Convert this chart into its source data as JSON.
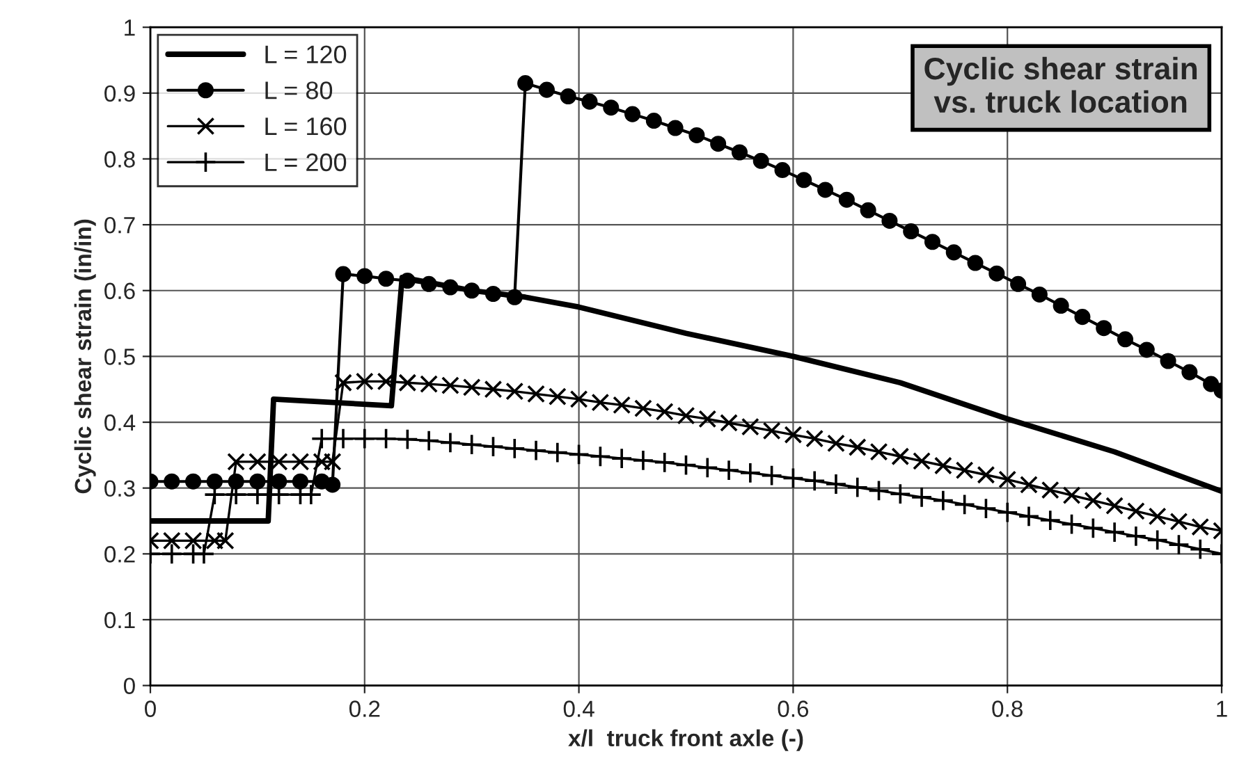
{
  "chart_data": {
    "type": "line",
    "title": "Cyclic shear strain\nvs. truck location",
    "xlabel": "x/l  truck front axle (-)",
    "ylabel": "Cyclic shear strain (in/in)",
    "xlim": [
      0,
      1
    ],
    "xticks": [
      0,
      0.2,
      0.4,
      0.6,
      0.8,
      1
    ],
    "ylim": [
      0,
      1
    ],
    "yticks": [
      0,
      0.1,
      0.2,
      0.3,
      0.4,
      0.5,
      0.6,
      0.7,
      0.8,
      0.9,
      1
    ],
    "grid": true,
    "legend": "top left",
    "series": [
      {
        "name": "L = 120",
        "color": "#000000",
        "marker": "none",
        "x": [
          0,
          0.11,
          0.115,
          0.225,
          0.235,
          0.3,
          0.35,
          0.4,
          0.5,
          0.6,
          0.7,
          0.8,
          0.9,
          1.0
        ],
        "values": [
          0.25,
          0.25,
          0.435,
          0.425,
          0.62,
          0.6,
          0.59,
          0.575,
          0.535,
          0.5,
          0.46,
          0.405,
          0.355,
          0.295
        ]
      },
      {
        "name": "L = 80",
        "color": "#000000",
        "marker": "circle",
        "x": [
          0,
          0.02,
          0.04,
          0.06,
          0.08,
          0.1,
          0.12,
          0.14,
          0.16,
          0.17,
          0.18,
          0.2,
          0.22,
          0.24,
          0.26,
          0.28,
          0.3,
          0.32,
          0.34,
          0.35,
          0.37,
          0.39,
          0.41,
          0.43,
          0.45,
          0.47,
          0.49,
          0.51,
          0.53,
          0.55,
          0.57,
          0.59,
          0.61,
          0.63,
          0.65,
          0.67,
          0.69,
          0.71,
          0.73,
          0.75,
          0.77,
          0.79,
          0.81,
          0.83,
          0.85,
          0.87,
          0.89,
          0.91,
          0.93,
          0.95,
          0.97,
          0.99,
          1.0
        ],
        "values": [
          0.31,
          0.31,
          0.31,
          0.31,
          0.31,
          0.31,
          0.31,
          0.31,
          0.31,
          0.305,
          0.625,
          0.622,
          0.618,
          0.615,
          0.61,
          0.605,
          0.6,
          0.595,
          0.59,
          0.915,
          0.905,
          0.895,
          0.887,
          0.878,
          0.868,
          0.858,
          0.847,
          0.836,
          0.823,
          0.81,
          0.797,
          0.783,
          0.768,
          0.753,
          0.738,
          0.722,
          0.706,
          0.69,
          0.674,
          0.658,
          0.642,
          0.626,
          0.61,
          0.594,
          0.577,
          0.56,
          0.543,
          0.526,
          0.51,
          0.493,
          0.476,
          0.458,
          0.448
        ]
      },
      {
        "name": "L = 160",
        "color": "#000000",
        "marker": "cross",
        "x": [
          0,
          0.02,
          0.04,
          0.06,
          0.07,
          0.08,
          0.1,
          0.12,
          0.14,
          0.16,
          0.17,
          0.18,
          0.2,
          0.22,
          0.24,
          0.26,
          0.28,
          0.3,
          0.32,
          0.34,
          0.36,
          0.38,
          0.4,
          0.42,
          0.44,
          0.46,
          0.48,
          0.5,
          0.52,
          0.54,
          0.56,
          0.58,
          0.6,
          0.62,
          0.64,
          0.66,
          0.68,
          0.7,
          0.72,
          0.74,
          0.76,
          0.78,
          0.8,
          0.82,
          0.84,
          0.86,
          0.88,
          0.9,
          0.92,
          0.94,
          0.96,
          0.98,
          1.0
        ],
        "values": [
          0.22,
          0.22,
          0.22,
          0.22,
          0.22,
          0.34,
          0.34,
          0.34,
          0.34,
          0.34,
          0.34,
          0.46,
          0.462,
          0.462,
          0.46,
          0.458,
          0.456,
          0.453,
          0.45,
          0.447,
          0.443,
          0.439,
          0.435,
          0.43,
          0.426,
          0.421,
          0.416,
          0.41,
          0.405,
          0.399,
          0.393,
          0.387,
          0.381,
          0.375,
          0.368,
          0.362,
          0.355,
          0.348,
          0.341,
          0.334,
          0.327,
          0.32,
          0.313,
          0.305,
          0.297,
          0.289,
          0.281,
          0.273,
          0.265,
          0.257,
          0.249,
          0.241,
          0.235
        ]
      },
      {
        "name": "L = 200",
        "color": "#000000",
        "marker": "plus",
        "x": [
          0,
          0.02,
          0.04,
          0.05,
          0.06,
          0.08,
          0.1,
          0.12,
          0.14,
          0.15,
          0.16,
          0.18,
          0.2,
          0.22,
          0.24,
          0.26,
          0.28,
          0.3,
          0.32,
          0.34,
          0.36,
          0.38,
          0.4,
          0.42,
          0.44,
          0.46,
          0.48,
          0.5,
          0.52,
          0.54,
          0.56,
          0.58,
          0.6,
          0.62,
          0.64,
          0.66,
          0.68,
          0.7,
          0.72,
          0.74,
          0.76,
          0.78,
          0.8,
          0.82,
          0.84,
          0.86,
          0.88,
          0.9,
          0.92,
          0.94,
          0.96,
          0.98,
          1.0
        ],
        "values": [
          0.2,
          0.2,
          0.2,
          0.2,
          0.29,
          0.29,
          0.29,
          0.29,
          0.29,
          0.29,
          0.375,
          0.375,
          0.375,
          0.375,
          0.374,
          0.372,
          0.369,
          0.366,
          0.363,
          0.36,
          0.357,
          0.354,
          0.351,
          0.348,
          0.345,
          0.342,
          0.339,
          0.335,
          0.331,
          0.327,
          0.323,
          0.319,
          0.315,
          0.311,
          0.306,
          0.301,
          0.296,
          0.291,
          0.286,
          0.281,
          0.275,
          0.269,
          0.263,
          0.257,
          0.251,
          0.245,
          0.239,
          0.233,
          0.227,
          0.221,
          0.214,
          0.207,
          0.2
        ]
      }
    ]
  }
}
